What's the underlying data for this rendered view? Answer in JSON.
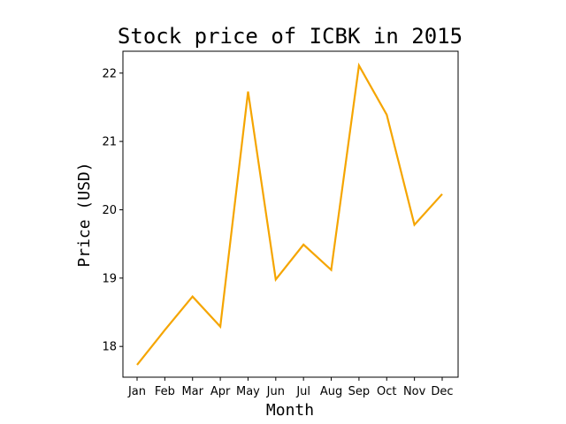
{
  "chart_data": {
    "type": "line",
    "title": "Stock price of ICBK in 2015",
    "xlabel": "Month",
    "ylabel": "Price (USD)",
    "categories": [
      "Jan",
      "Feb",
      "Mar",
      "Apr",
      "May",
      "Jun",
      "Jul",
      "Aug",
      "Sep",
      "Oct",
      "Nov",
      "Dec"
    ],
    "series": [
      {
        "values": [
          17.73,
          18.24,
          18.73,
          18.29,
          21.73,
          18.98,
          19.49,
          19.12,
          22.11,
          21.39,
          19.78,
          20.23
        ]
      }
    ],
    "yticks": [
      18,
      19,
      20,
      21,
      22
    ],
    "ylim": [
      17.55,
      22.32
    ],
    "grid": false,
    "line_color": "#f5a500"
  }
}
